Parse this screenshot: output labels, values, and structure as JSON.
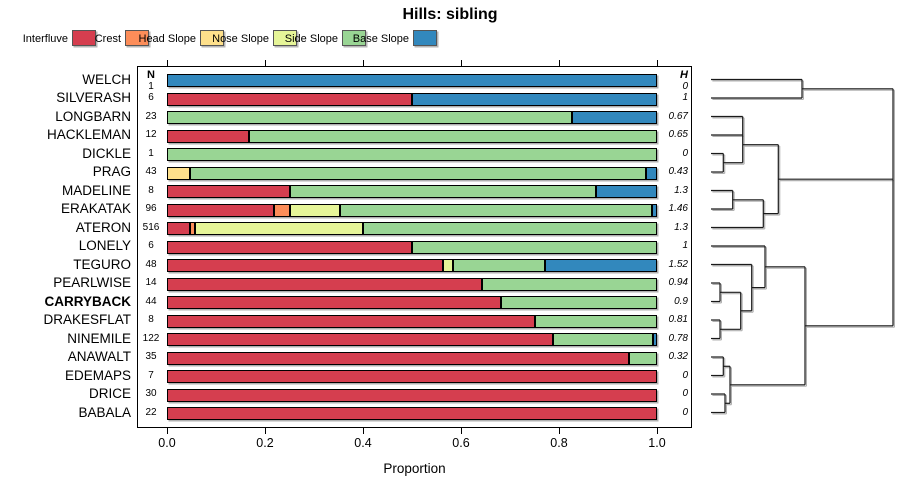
{
  "title": "Hills: sibling",
  "legend": {
    "items": [
      {
        "label": "Interfluve",
        "color": "#D53E4F"
      },
      {
        "label": "Crest",
        "color": "#FC8D59"
      },
      {
        "label": "Head Slope",
        "color": "#FEE08B"
      },
      {
        "label": "Nose Slope",
        "color": "#E6F598"
      },
      {
        "label": "Side Slope",
        "color": "#99D594"
      },
      {
        "label": "Base Slope",
        "color": "#3288BD"
      }
    ]
  },
  "columns": {
    "n_header": "N",
    "h_header": "H"
  },
  "axis": {
    "xlabel": "Proportion",
    "tick_labels": [
      "0.0",
      "0.2",
      "0.4",
      "0.6",
      "0.8",
      "1.0"
    ],
    "tick_values": [
      0,
      0.2,
      0.4,
      0.6,
      0.8,
      1.0
    ]
  },
  "chart_data": {
    "type": "bar",
    "stacked": true,
    "orientation": "horizontal",
    "xlim": [
      0,
      1
    ],
    "xlabel": "Proportion",
    "categories": [
      "Interfluve",
      "Crest",
      "Head Slope",
      "Nose Slope",
      "Side Slope",
      "Base Slope"
    ],
    "rows": [
      {
        "label": "WELCH",
        "n": 1,
        "h": "0",
        "bold": false,
        "segments": [
          [
            "Base Slope",
            1.0
          ]
        ]
      },
      {
        "label": "SILVERASH",
        "n": 6,
        "h": "1",
        "bold": false,
        "segments": [
          [
            "Interfluve",
            0.5
          ],
          [
            "Base Slope",
            0.5
          ]
        ]
      },
      {
        "label": "LONGBARN",
        "n": 23,
        "h": "0.67",
        "bold": false,
        "segments": [
          [
            "Side Slope",
            0.826
          ],
          [
            "Base Slope",
            0.174
          ]
        ]
      },
      {
        "label": "HACKLEMAN",
        "n": 12,
        "h": "0.65",
        "bold": false,
        "segments": [
          [
            "Interfluve",
            0.167
          ],
          [
            "Side Slope",
            0.833
          ]
        ]
      },
      {
        "label": "DICKLE",
        "n": 1,
        "h": "0",
        "bold": false,
        "segments": [
          [
            "Side Slope",
            1.0
          ]
        ]
      },
      {
        "label": "PRAG",
        "n": 43,
        "h": "0.43",
        "bold": false,
        "segments": [
          [
            "Head Slope",
            0.047
          ],
          [
            "Side Slope",
            0.93
          ],
          [
            "Base Slope",
            0.023
          ]
        ]
      },
      {
        "label": "MADELINE",
        "n": 8,
        "h": "1.3",
        "bold": false,
        "segments": [
          [
            "Interfluve",
            0.25
          ],
          [
            "Side Slope",
            0.625
          ],
          [
            "Base Slope",
            0.125
          ]
        ]
      },
      {
        "label": "ERAKATAK",
        "n": 96,
        "h": "1.46",
        "bold": false,
        "segments": [
          [
            "Interfluve",
            0.219
          ],
          [
            "Crest",
            0.031
          ],
          [
            "Nose Slope",
            0.104
          ],
          [
            "Side Slope",
            0.635
          ],
          [
            "Base Slope",
            0.011
          ]
        ]
      },
      {
        "label": "ATERON",
        "n": 516,
        "h": "1.3",
        "bold": false,
        "segments": [
          [
            "Interfluve",
            0.046
          ],
          [
            "Crest",
            0.012
          ],
          [
            "Nose Slope",
            0.341
          ],
          [
            "Side Slope",
            0.601
          ]
        ]
      },
      {
        "label": "LONELY",
        "n": 6,
        "h": "1",
        "bold": false,
        "segments": [
          [
            "Interfluve",
            0.5
          ],
          [
            "Side Slope",
            0.5
          ]
        ]
      },
      {
        "label": "TEGURO",
        "n": 48,
        "h": "1.52",
        "bold": false,
        "segments": [
          [
            "Interfluve",
            0.563
          ],
          [
            "Nose Slope",
            0.021
          ],
          [
            "Side Slope",
            0.187
          ],
          [
            "Base Slope",
            0.229
          ]
        ]
      },
      {
        "label": "PEARLWISE",
        "n": 14,
        "h": "0.94",
        "bold": false,
        "segments": [
          [
            "Interfluve",
            0.643
          ],
          [
            "Side Slope",
            0.357
          ]
        ]
      },
      {
        "label": "CARRYBACK",
        "n": 44,
        "h": "0.9",
        "bold": true,
        "segments": [
          [
            "Interfluve",
            0.682
          ],
          [
            "Side Slope",
            0.318
          ]
        ]
      },
      {
        "label": "DRAKESFLAT",
        "n": 8,
        "h": "0.81",
        "bold": false,
        "segments": [
          [
            "Interfluve",
            0.75
          ],
          [
            "Side Slope",
            0.25
          ]
        ]
      },
      {
        "label": "NINEMILE",
        "n": 122,
        "h": "0.78",
        "bold": false,
        "segments": [
          [
            "Interfluve",
            0.787
          ],
          [
            "Side Slope",
            0.205
          ],
          [
            "Base Slope",
            0.008
          ]
        ]
      },
      {
        "label": "ANAWALT",
        "n": 35,
        "h": "0.32",
        "bold": false,
        "segments": [
          [
            "Interfluve",
            0.943
          ],
          [
            "Side Slope",
            0.057
          ]
        ]
      },
      {
        "label": "EDEMAPS",
        "n": 7,
        "h": "0",
        "bold": false,
        "segments": [
          [
            "Interfluve",
            1.0
          ]
        ]
      },
      {
        "label": "DRICE",
        "n": 30,
        "h": "0",
        "bold": false,
        "segments": [
          [
            "Interfluve",
            1.0
          ]
        ]
      },
      {
        "label": "BABALA",
        "n": 22,
        "h": "0",
        "bold": false,
        "segments": [
          [
            "Interfluve",
            1.0
          ]
        ]
      }
    ],
    "dendrogram": {
      "note": "hierarchical clustering tree, heights drawn left-to-right",
      "segments": [
        [
          711,
          79.5,
          802,
          79.5
        ],
        [
          711,
          98,
          802,
          98
        ],
        [
          802,
          79.5,
          802,
          98
        ],
        [
          802,
          88.8,
          893,
          88.8
        ],
        [
          711,
          116.5,
          742.7,
          116.5
        ],
        [
          711,
          135,
          742.7,
          135
        ],
        [
          742.7,
          116.5,
          742.7,
          162.7
        ],
        [
          711,
          153.5,
          723.3,
          153.5
        ],
        [
          711,
          172,
          723.3,
          172
        ],
        [
          723.3,
          153.5,
          723.3,
          172
        ],
        [
          723.3,
          162.7,
          742.7,
          162.7
        ],
        [
          742.7,
          144.7,
          778.3,
          144.7
        ],
        [
          711,
          190.5,
          732.7,
          190.5
        ],
        [
          711,
          209,
          732.7,
          209
        ],
        [
          732.7,
          190.5,
          732.7,
          209
        ],
        [
          732.7,
          199.8,
          763.3,
          199.8
        ],
        [
          711,
          227.5,
          763.3,
          227.5
        ],
        [
          763.3,
          199.8,
          763.3,
          227.5
        ],
        [
          763.3,
          213.6,
          778.3,
          213.6
        ],
        [
          778.3,
          144.7,
          778.3,
          213.6
        ],
        [
          778.3,
          179.2,
          893,
          179.2
        ],
        [
          711,
          283,
          720,
          283
        ],
        [
          711,
          301.5,
          720,
          301.5
        ],
        [
          720,
          283,
          720,
          301.5
        ],
        [
          720,
          292.3,
          740.7,
          292.3
        ],
        [
          711,
          320,
          720,
          320
        ],
        [
          711,
          338.5,
          720,
          338.5
        ],
        [
          720,
          320,
          720,
          338.5
        ],
        [
          720,
          329.3,
          740.7,
          329.3
        ],
        [
          740.7,
          292.3,
          740.7,
          329.3
        ],
        [
          740.7,
          310.8,
          751.7,
          310.8
        ],
        [
          711,
          264.5,
          751.7,
          264.5
        ],
        [
          751.7,
          264.5,
          751.7,
          310.8
        ],
        [
          751.7,
          287.6,
          765,
          287.6
        ],
        [
          711,
          246,
          765,
          246
        ],
        [
          765,
          246,
          765,
          287.6
        ],
        [
          765,
          266.8,
          805,
          266.8
        ],
        [
          711,
          357,
          723.3,
          357
        ],
        [
          711,
          375.5,
          723.3,
          375.5
        ],
        [
          723.3,
          357,
          723.3,
          375.5
        ],
        [
          723.3,
          366.3,
          730,
          366.3
        ],
        [
          711,
          394,
          725,
          394
        ],
        [
          711,
          412.5,
          725,
          412.5
        ],
        [
          725,
          394,
          725,
          412.5
        ],
        [
          725,
          403.3,
          730,
          403.3
        ],
        [
          730,
          366.3,
          730,
          403.3
        ],
        [
          730,
          384.8,
          805,
          384.8
        ],
        [
          805,
          266.8,
          805,
          384.8
        ],
        [
          805,
          325.8,
          893,
          325.8
        ],
        [
          893,
          88.8,
          893,
          325.8
        ]
      ]
    }
  }
}
